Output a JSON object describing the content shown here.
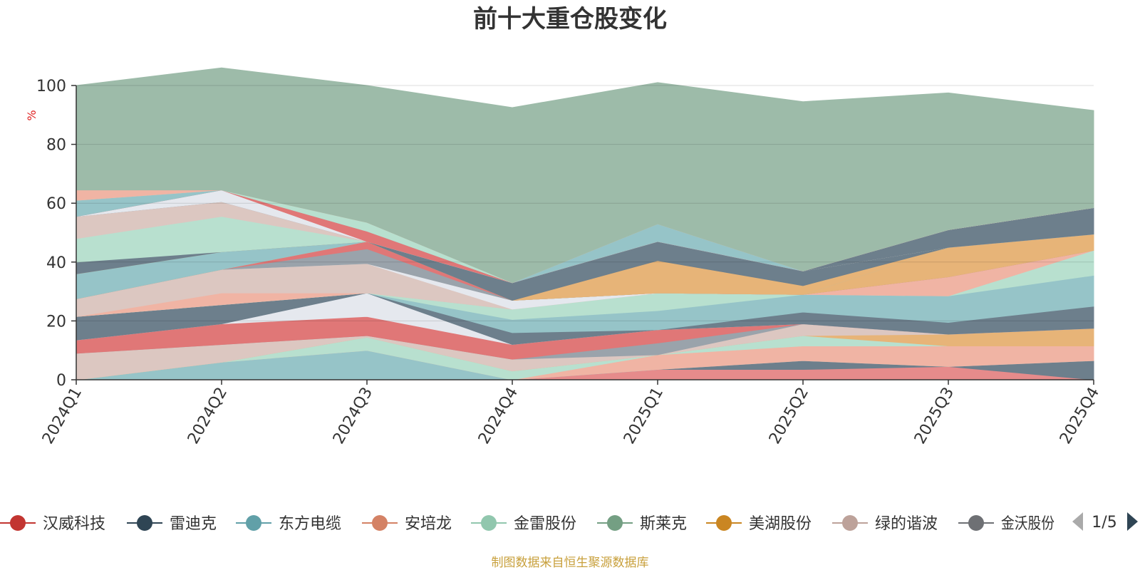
{
  "title": "前十大重仓股变化",
  "source_note": "制图数据来自恒生聚源数据库",
  "legend_page": "1/5",
  "chart_data": {
    "type": "area",
    "stacked": true,
    "title": "前十大重仓股变化",
    "ylabel": "%",
    "ylim": [
      0,
      100
    ],
    "yticks": [
      0,
      20,
      40,
      60,
      80,
      100
    ],
    "categories": [
      "2024Q1",
      "2024Q2",
      "2024Q3",
      "2024Q4",
      "2025Q1",
      "2025Q2",
      "2025Q3",
      "2025Q4"
    ],
    "legend_position": "bottom",
    "grid": true,
    "series": [
      {
        "name": "",
        "color": "#e68b8b",
        "values": [
          0,
          0,
          0,
          0,
          3.5,
          3.5,
          4.5,
          0
        ]
      },
      {
        "name": "",
        "color": "#6d7f8c",
        "values": [
          0,
          0,
          0,
          0,
          0,
          3,
          0,
          6.5
        ]
      },
      {
        "name": "",
        "color": "#96c4c8",
        "values": [
          0,
          6,
          10,
          0,
          0,
          0,
          0,
          0
        ]
      },
      {
        "name": "",
        "color": "#f0b4a4",
        "values": [
          0,
          0,
          0,
          0,
          5,
          5,
          7,
          5
        ]
      },
      {
        "name": "",
        "color": "#b8e0cf",
        "values": [
          0,
          0,
          4.5,
          3,
          0,
          3.5,
          0,
          0
        ]
      },
      {
        "name": "",
        "color": "#e7b478",
        "values": [
          0,
          0,
          0,
          0,
          0,
          0,
          4,
          6
        ]
      },
      {
        "name": "",
        "color": "#dcc7c1",
        "values": [
          9,
          6,
          0.5,
          4,
          0,
          4,
          0,
          0
        ]
      },
      {
        "name": "",
        "color": "#9aa3ab",
        "values": [
          0,
          0,
          0,
          0,
          4,
          0,
          0,
          0
        ]
      },
      {
        "name": "",
        "color": "#e07777",
        "values": [
          4.5,
          7,
          6.5,
          5,
          4.5,
          0,
          0,
          0
        ]
      },
      {
        "name": "",
        "color": "#e5e8ee",
        "values": [
          0,
          0,
          8,
          0,
          0,
          0,
          0,
          0
        ]
      },
      {
        "name": "",
        "color": "#6d7f8c",
        "values": [
          8,
          6.5,
          0,
          4,
          0,
          4,
          4,
          7.5
        ]
      },
      {
        "name": "",
        "color": "#96c4c8",
        "values": [
          0,
          0,
          0,
          4.5,
          6.5,
          6,
          9,
          10.5
        ]
      },
      {
        "name": "",
        "color": "#b8e0cf",
        "values": [
          0,
          0,
          0,
          3.5,
          6,
          0,
          0,
          8.5
        ]
      },
      {
        "name": "",
        "color": "#f0b4a4",
        "values": [
          0,
          4,
          0,
          0,
          0,
          0,
          6.5,
          0
        ]
      },
      {
        "name": "",
        "color": "#dcc7c1",
        "values": [
          6,
          8,
          10,
          0,
          0,
          0,
          0,
          0
        ]
      },
      {
        "name": "",
        "color": "#e5e8ee",
        "values": [
          0,
          0,
          0,
          3,
          0,
          0,
          0,
          0
        ]
      },
      {
        "name": "",
        "color": "#9aa3ab",
        "values": [
          0,
          0,
          5,
          0,
          0,
          0,
          0,
          0
        ]
      },
      {
        "name": "",
        "color": "#e07777",
        "values": [
          0,
          0,
          2.5,
          0,
          0,
          0,
          0,
          0
        ]
      },
      {
        "name": "",
        "color": "#e7b478",
        "values": [
          0,
          0,
          0,
          0,
          0,
          0,
          10,
          5.5
        ]
      },
      {
        "name": "",
        "color": "#96c4c8",
        "values": [
          8.5,
          6,
          0,
          0,
          0,
          0,
          0,
          0
        ]
      },
      {
        "name": "",
        "color": "#e7b478",
        "values": [
          0,
          0,
          0,
          0,
          11,
          3,
          0,
          0
        ]
      },
      {
        "name": "",
        "color": "#6d7f8c",
        "values": [
          4,
          0,
          0,
          6,
          6.5,
          5,
          0,
          0
        ]
      },
      {
        "name": "",
        "color": "#b8e0cf",
        "values": [
          8,
          12,
          0,
          0,
          0,
          0,
          0,
          0
        ]
      },
      {
        "name": "",
        "color": "#dcc7c1",
        "values": [
          7.5,
          5,
          0,
          0,
          0,
          0,
          0,
          0
        ]
      },
      {
        "name": "",
        "color": "#6d7f8c",
        "values": [
          0,
          0,
          0,
          0,
          0,
          0,
          6,
          9
        ]
      },
      {
        "name": "",
        "color": "#e5e8ee",
        "values": [
          0,
          4,
          0,
          0,
          0,
          0,
          0,
          0
        ]
      },
      {
        "name": "",
        "color": "#e07777",
        "values": [
          0,
          0,
          3.5,
          0,
          0,
          0,
          0,
          0
        ]
      },
      {
        "name": "",
        "color": "#96c4c8",
        "values": [
          5.5,
          0,
          0,
          0,
          6,
          0,
          0,
          0
        ]
      },
      {
        "name": "",
        "color": "#b8e0cf",
        "values": [
          0,
          0,
          3,
          0,
          0,
          0,
          0,
          0
        ]
      },
      {
        "name": "",
        "color": "#f0b4a4",
        "values": [
          3.5,
          0,
          0,
          0,
          0,
          0,
          0,
          0
        ]
      },
      {
        "name": "",
        "color": "#9dbba9",
        "values": [
          35.5,
          41.5,
          46.5,
          59.5,
          48,
          57.5,
          46.5,
          33
        ]
      }
    ],
    "legend": [
      {
        "name": "汉威科技",
        "color": "#c23531"
      },
      {
        "name": "雷迪克",
        "color": "#2f4554"
      },
      {
        "name": "东方电缆",
        "color": "#61a0a8"
      },
      {
        "name": "安培龙",
        "color": "#d48265"
      },
      {
        "name": "金雷股份",
        "color": "#91c7ae"
      },
      {
        "name": "斯莱克",
        "color": "#749f83"
      },
      {
        "name": "美湖股份",
        "color": "#ca8622"
      },
      {
        "name": "绿的谐波",
        "color": "#bda29a"
      },
      {
        "name": "金沃股份",
        "color": "#6e7074"
      }
    ]
  }
}
